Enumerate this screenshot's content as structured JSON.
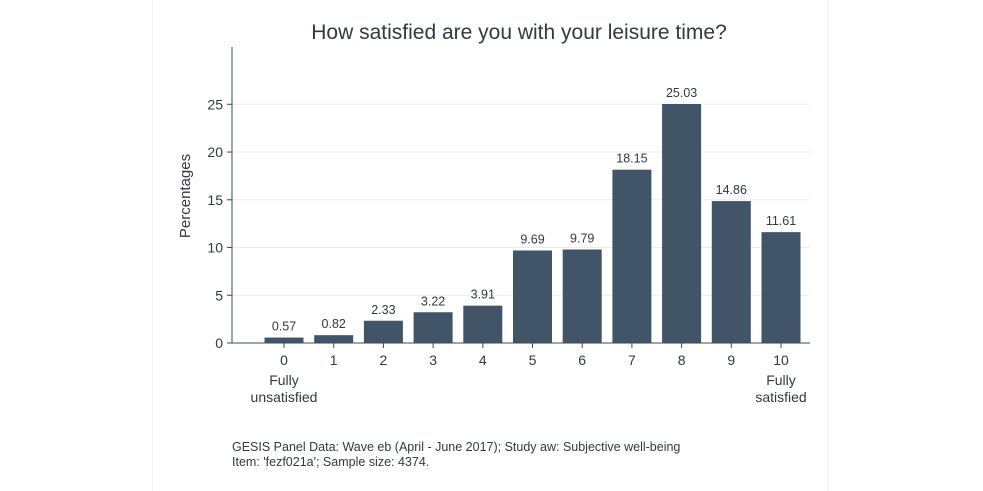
{
  "chart_data": {
    "type": "bar",
    "title": "How satisfied are you with your leisure time?",
    "xlabel": "",
    "ylabel": "Percentages",
    "categories": [
      "0",
      "1",
      "2",
      "3",
      "4",
      "5",
      "6",
      "7",
      "8",
      "9",
      "10"
    ],
    "category_sublabels": {
      "0": [
        "Fully",
        "unsatisfied"
      ],
      "10": [
        "Fully",
        "satisfied"
      ]
    },
    "values": [
      0.57,
      0.82,
      2.33,
      3.22,
      3.91,
      9.69,
      9.79,
      18.15,
      25.03,
      14.86,
      11.61
    ],
    "value_labels": [
      "0.57",
      "0.82",
      "2.33",
      "3.22",
      "3.91",
      "9.69",
      "9.79",
      "18.15",
      "25.03",
      "14.86",
      "11.61"
    ],
    "ylim": [
      0,
      31
    ],
    "yticks": [
      0,
      5,
      10,
      15,
      20,
      25
    ],
    "grid": true,
    "legend": "none",
    "colors": {
      "bar": "#415468",
      "grid": "#e9ecef",
      "axis": "#3a4a5a",
      "text": "#2f3a44"
    }
  },
  "footnote": {
    "line1": "GESIS Panel Data: Wave eb (April - June 2017); Study aw: Subjective well-being",
    "line2": "Item: 'fezf021a'; Sample size: 4374."
  }
}
